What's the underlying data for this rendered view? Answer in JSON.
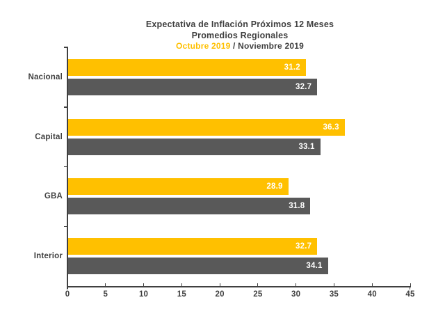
{
  "colors": {
    "octubre": "#FFC000",
    "noviembre": "#595959",
    "axis": "#404040",
    "title_text": "#3f3f3f",
    "value_text": "#ffffff"
  },
  "chart_data": {
    "type": "bar",
    "orientation": "horizontal",
    "title": "Expectativa de Inflación Próximos 12 Meses",
    "subtitle": "Promedios Regionales",
    "legend_separator": " / ",
    "categories": [
      "Nacional",
      "Capital",
      "GBA",
      "Interior"
    ],
    "series": [
      {
        "name": "Octubre 2019",
        "color": "#FFC000",
        "values": [
          31.2,
          36.3,
          28.9,
          32.7
        ]
      },
      {
        "name": "Noviembre 2019",
        "color": "#595959",
        "values": [
          32.7,
          33.1,
          31.8,
          34.1
        ]
      }
    ],
    "xlim": [
      0,
      45
    ],
    "x_ticks": [
      0,
      5,
      10,
      15,
      20,
      25,
      30,
      35,
      40,
      45
    ],
    "grid": false,
    "legend_position": "in-title",
    "value_labels": "inside-end, one decimal"
  }
}
